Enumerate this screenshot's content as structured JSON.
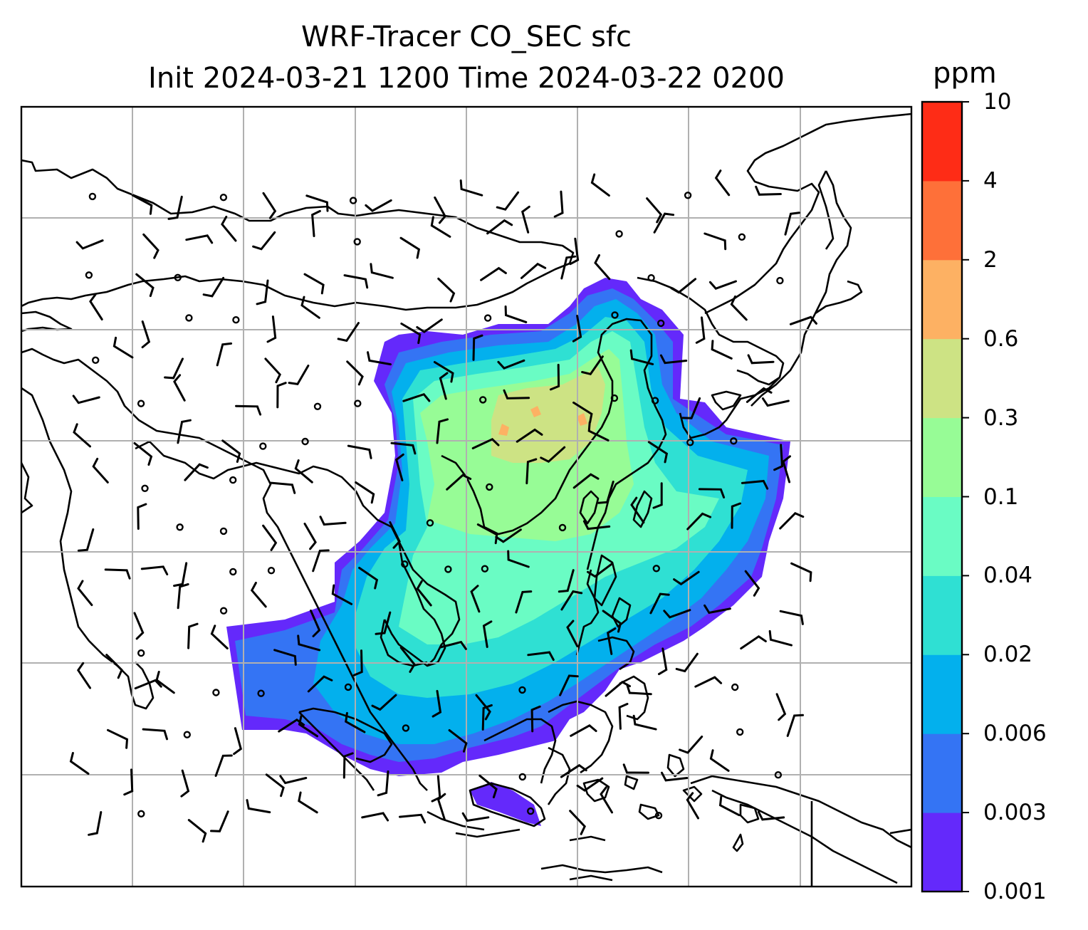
{
  "map": {
    "title_line1": "WRF-Tracer CO_SEC sfc",
    "title_line2": "Init 2024-03-21 1200 Time 2024-03-22 0200",
    "colorbar": {
      "unit": "ppm",
      "levels": [
        "0.001",
        "0.003",
        "0.006",
        "0.02",
        "0.04",
        "0.1",
        "0.3",
        "0.6",
        "2",
        "4",
        "10"
      ],
      "colors": [
        "#6429fb",
        "#3474f4",
        "#03b0ed",
        "#2fe0d3",
        "#6afcc4",
        "#97fc96",
        "#cde384",
        "#fdb163",
        "#fe7039",
        "#fe2c16"
      ]
    },
    "background_color": "#ffffff",
    "coastline_color": "#000000",
    "gridline_color": "#b0b0b0"
  }
}
